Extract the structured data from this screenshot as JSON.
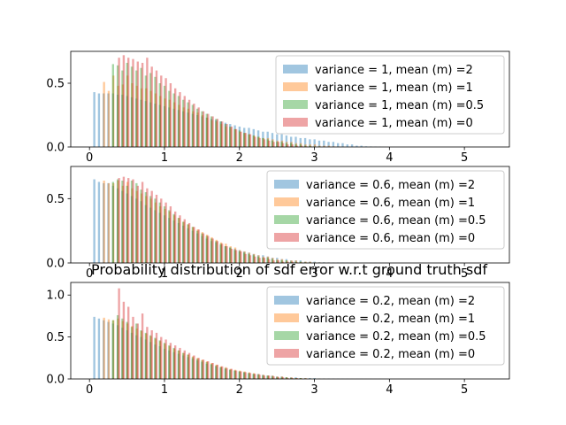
{
  "figure": {
    "title": "Probability distribution of sdf error w.r.t ground truth sdf"
  },
  "chart_data": [
    {
      "type": "bar",
      "xlim": [
        -0.25,
        5.6
      ],
      "ylim": [
        0,
        0.75
      ],
      "xticks": [
        0,
        1,
        2,
        3,
        4,
        5
      ],
      "yticks": [
        0.0,
        0.5
      ],
      "ytick_labels": [
        "0.0",
        "0.5"
      ],
      "legend_position": "upper right",
      "series": [
        {
          "name": "variance = 1, mean (m) =2",
          "color": "#1f77b4",
          "x_start": 0.05,
          "values": [
            0.43,
            0.42,
            0.42,
            0.42,
            0.42,
            0.41,
            0.41,
            0.4,
            0.39,
            0.38,
            0.37,
            0.36,
            0.35,
            0.34,
            0.33,
            0.32,
            0.31,
            0.3,
            0.29,
            0.28,
            0.27,
            0.26,
            0.25,
            0.24,
            0.23,
            0.22,
            0.21,
            0.2,
            0.19,
            0.18,
            0.17,
            0.16,
            0.15,
            0.15,
            0.14,
            0.13,
            0.12,
            0.12,
            0.11,
            0.1,
            0.1,
            0.09,
            0.08,
            0.08,
            0.07,
            0.07,
            0.06,
            0.06,
            0.05,
            0.05,
            0.04,
            0.04,
            0.03,
            0.03,
            0.02,
            0.02,
            0.01,
            0.01,
            0.005,
            0.004,
            0.003,
            0.002
          ]
        },
        {
          "name": "variance = 1, mean (m) =1",
          "color": "#ff7f0e",
          "x_start": 0.18,
          "values": [
            0.51,
            0.44,
            0.56,
            0.48,
            0.49,
            0.56,
            0.5,
            0.48,
            0.46,
            0.46,
            0.44,
            0.42,
            0.4,
            0.38,
            0.37,
            0.35,
            0.33,
            0.31,
            0.3,
            0.28,
            0.27,
            0.25,
            0.23,
            0.21,
            0.2,
            0.18,
            0.16,
            0.15,
            0.14,
            0.12,
            0.11,
            0.1,
            0.09,
            0.08,
            0.07,
            0.07,
            0.06,
            0.05,
            0.05,
            0.04,
            0.04,
            0.03,
            0.03,
            0.02,
            0.02,
            0.02,
            0.01,
            0.01,
            0.01,
            0.005,
            0.004,
            0.003
          ]
        },
        {
          "name": "variance = 1, mean (m) =0.5",
          "color": "#2ca02c",
          "x_start": 0.3,
          "values": [
            0.65,
            0.64,
            0.6,
            0.66,
            0.63,
            0.6,
            0.62,
            0.56,
            0.58,
            0.55,
            0.5,
            0.48,
            0.44,
            0.42,
            0.4,
            0.37,
            0.35,
            0.33,
            0.3,
            0.28,
            0.26,
            0.24,
            0.22,
            0.2,
            0.18,
            0.16,
            0.14,
            0.13,
            0.11,
            0.1,
            0.09,
            0.08,
            0.07,
            0.06,
            0.05,
            0.04,
            0.04,
            0.03,
            0.03,
            0.02,
            0.02,
            0.01,
            0.01,
            0.005,
            0.004,
            0.003
          ]
        },
        {
          "name": "variance = 1, mean (m) =0",
          "color": "#d62728",
          "x_start": 0.38,
          "values": [
            0.7,
            0.72,
            0.7,
            0.69,
            0.67,
            0.66,
            0.7,
            0.63,
            0.6,
            0.56,
            0.54,
            0.5,
            0.46,
            0.43,
            0.4,
            0.37,
            0.34,
            0.31,
            0.28,
            0.26,
            0.24,
            0.22,
            0.2,
            0.18,
            0.16,
            0.14,
            0.12,
            0.11,
            0.1,
            0.08,
            0.07,
            0.06,
            0.05,
            0.04,
            0.04,
            0.03,
            0.02,
            0.02,
            0.01,
            0.01,
            0.005,
            0.004
          ]
        }
      ]
    },
    {
      "type": "bar",
      "xlim": [
        -0.25,
        5.6
      ],
      "ylim": [
        0,
        0.75
      ],
      "xticks": [
        0,
        1,
        2,
        3,
        4,
        5
      ],
      "yticks": [
        0.0,
        0.5
      ],
      "ytick_labels": [
        "0.0",
        "0.5"
      ],
      "legend_position": "upper right",
      "series": [
        {
          "name": "variance = 0.6, mean (m) =2",
          "color": "#1f77b4",
          "x_start": 0.05,
          "values": [
            0.65,
            0.63,
            0.62,
            0.62,
            0.6,
            0.58,
            0.56,
            0.54,
            0.52,
            0.5,
            0.48,
            0.45,
            0.43,
            0.41,
            0.39,
            0.37,
            0.35,
            0.33,
            0.31,
            0.29,
            0.27,
            0.25,
            0.23,
            0.21,
            0.19,
            0.17,
            0.16,
            0.14,
            0.13,
            0.12,
            0.11,
            0.1,
            0.09,
            0.08,
            0.07,
            0.06,
            0.06,
            0.05,
            0.04,
            0.04,
            0.03,
            0.03,
            0.02,
            0.02,
            0.02,
            0.01,
            0.01,
            0.01,
            0.005,
            0.005,
            0.004,
            0.003,
            0.003,
            0.002,
            0.002,
            0.001,
            0.001,
            0.001,
            0.001,
            0.001,
            0.001,
            0.001
          ]
        },
        {
          "name": "variance = 0.6, mean (m) =1",
          "color": "#ff7f0e",
          "x_start": 0.18,
          "values": [
            0.64,
            0.62,
            0.62,
            0.64,
            0.6,
            0.63,
            0.58,
            0.56,
            0.54,
            0.52,
            0.5,
            0.47,
            0.44,
            0.42,
            0.4,
            0.37,
            0.35,
            0.32,
            0.3,
            0.28,
            0.26,
            0.24,
            0.22,
            0.2,
            0.18,
            0.16,
            0.15,
            0.13,
            0.12,
            0.1,
            0.09,
            0.08,
            0.07,
            0.06,
            0.05,
            0.05,
            0.04,
            0.03,
            0.03,
            0.02,
            0.02,
            0.02,
            0.01,
            0.01,
            0.01,
            0.005,
            0.004,
            0.003,
            0.002,
            0.001
          ]
        },
        {
          "name": "variance = 0.6, mean (m) =0.5",
          "color": "#2ca02c",
          "x_start": 0.3,
          "values": [
            0.63,
            0.65,
            0.64,
            0.6,
            0.64,
            0.62,
            0.57,
            0.55,
            0.52,
            0.5,
            0.47,
            0.44,
            0.41,
            0.38,
            0.35,
            0.32,
            0.3,
            0.28,
            0.25,
            0.23,
            0.21,
            0.19,
            0.17,
            0.15,
            0.13,
            0.12,
            0.1,
            0.09,
            0.08,
            0.07,
            0.06,
            0.05,
            0.04,
            0.04,
            0.03,
            0.02,
            0.02,
            0.02,
            0.01,
            0.01,
            0.01,
            0.005,
            0.004,
            0.003,
            0.002,
            0.001
          ]
        },
        {
          "name": "variance = 0.6, mean (m) =0",
          "color": "#d62728",
          "x_start": 0.38,
          "values": [
            0.66,
            0.67,
            0.66,
            0.65,
            0.6,
            0.63,
            0.58,
            0.56,
            0.53,
            0.5,
            0.47,
            0.44,
            0.4,
            0.37,
            0.34,
            0.31,
            0.28,
            0.26,
            0.23,
            0.21,
            0.19,
            0.17,
            0.15,
            0.13,
            0.11,
            0.1,
            0.09,
            0.07,
            0.06,
            0.05,
            0.04,
            0.04,
            0.03,
            0.02,
            0.02,
            0.01,
            0.01,
            0.01,
            0.005,
            0.004,
            0.003
          ]
        }
      ]
    },
    {
      "type": "bar",
      "title": "Probability distribution of sdf error w.r.t ground truth sdf",
      "xlim": [
        -0.25,
        5.6
      ],
      "ylim": [
        0,
        1.15
      ],
      "xticks": [
        0,
        1,
        2,
        3,
        4,
        5
      ],
      "yticks": [
        0.0,
        0.5,
        1.0
      ],
      "ytick_labels": [
        "0.0",
        "0.5",
        "1.0"
      ],
      "legend_position": "upper right",
      "series": [
        {
          "name": "variance = 0.2, mean (m) =2",
          "color": "#1f77b4",
          "x_start": 0.05,
          "values": [
            0.74,
            0.72,
            0.7,
            0.68,
            0.66,
            0.64,
            0.61,
            0.58,
            0.55,
            0.52,
            0.5,
            0.47,
            0.44,
            0.41,
            0.39,
            0.36,
            0.34,
            0.32,
            0.3,
            0.28,
            0.26,
            0.24,
            0.22,
            0.2,
            0.18,
            0.17,
            0.15,
            0.14,
            0.12,
            0.11,
            0.1,
            0.09,
            0.08,
            0.07,
            0.06,
            0.06,
            0.05,
            0.04,
            0.04,
            0.03,
            0.03,
            0.02,
            0.02,
            0.02,
            0.01,
            0.01,
            0.01,
            0.01,
            0.005,
            0.004,
            0.004,
            0.003,
            0.003,
            0.002,
            0.002,
            0.001,
            0.001,
            0.001,
            0.001,
            0.001,
            0.001,
            0.001
          ]
        },
        {
          "name": "variance = 0.2, mean (m) =1",
          "color": "#ff7f0e",
          "x_start": 0.18,
          "values": [
            0.73,
            0.71,
            0.7,
            0.72,
            0.69,
            0.66,
            0.63,
            0.6,
            0.57,
            0.54,
            0.51,
            0.48,
            0.45,
            0.42,
            0.39,
            0.36,
            0.34,
            0.31,
            0.29,
            0.27,
            0.25,
            0.23,
            0.21,
            0.19,
            0.17,
            0.15,
            0.14,
            0.12,
            0.11,
            0.1,
            0.09,
            0.08,
            0.07,
            0.06,
            0.05,
            0.04,
            0.04,
            0.03,
            0.03,
            0.02,
            0.02,
            0.01,
            0.01,
            0.01,
            0.005,
            0.004,
            0.003,
            0.002,
            0.001,
            0.001
          ]
        },
        {
          "name": "variance = 0.2, mean (m) =0.5",
          "color": "#2ca02c",
          "x_start": 0.3,
          "values": [
            0.7,
            0.76,
            0.72,
            0.68,
            0.62,
            0.66,
            0.58,
            0.55,
            0.52,
            0.49,
            0.46,
            0.43,
            0.4,
            0.37,
            0.34,
            0.31,
            0.29,
            0.26,
            0.24,
            0.22,
            0.2,
            0.18,
            0.16,
            0.14,
            0.13,
            0.11,
            0.1,
            0.09,
            0.08,
            0.07,
            0.06,
            0.05,
            0.04,
            0.04,
            0.03,
            0.02,
            0.02,
            0.02,
            0.01,
            0.01,
            0.01,
            0.005,
            0.004,
            0.003,
            0.002,
            0.001
          ]
        },
        {
          "name": "variance = 0.2, mean (m) =0",
          "color": "#d62728",
          "x_start": 0.38,
          "values": [
            1.08,
            0.92,
            0.86,
            0.74,
            0.66,
            0.78,
            0.62,
            0.58,
            0.55,
            0.5,
            0.47,
            0.43,
            0.4,
            0.37,
            0.34,
            0.31,
            0.28,
            0.25,
            0.23,
            0.21,
            0.19,
            0.17,
            0.15,
            0.13,
            0.12,
            0.1,
            0.09,
            0.08,
            0.07,
            0.06,
            0.05,
            0.04,
            0.04,
            0.03,
            0.02,
            0.02,
            0.01,
            0.01,
            0.01,
            0.005,
            0.004
          ]
        }
      ]
    }
  ]
}
